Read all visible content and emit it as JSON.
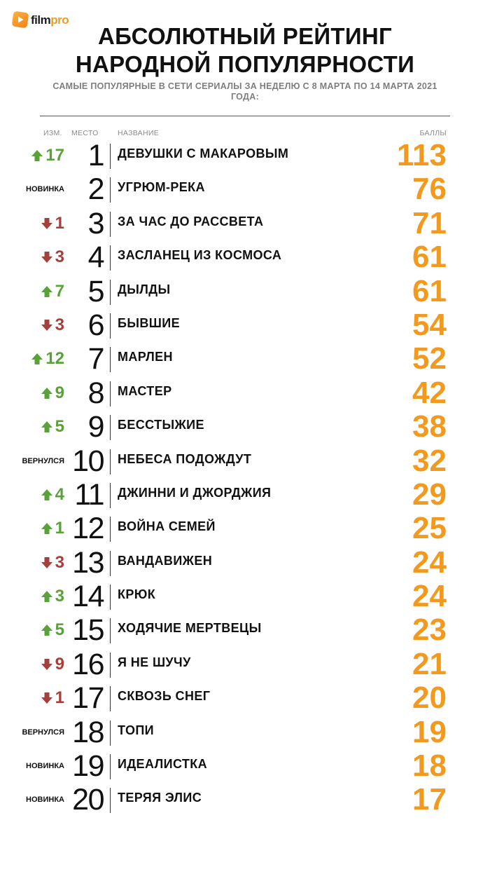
{
  "brand": {
    "name_a": "film",
    "name_b": "pro",
    "icon": "play-icon"
  },
  "title": {
    "line1": "АБСОЛЮТНЫЙ РЕЙТИНГ",
    "line2": "НАРОДНОЙ ПОПУЛЯРНОСТИ",
    "subtitle": "САМЫЕ ПОПУЛЯРНЫЕ В СЕТИ СЕРИАЛЫ ЗА НЕДЕЛЮ С 8 МАРТА ПО 14 МАРТА 2021 ГОДА:"
  },
  "columns": {
    "change": "ИЗМ.",
    "place": "МЕСТО",
    "name": "НАЗВАНИЕ",
    "points": "БАЛЛЫ"
  },
  "colors": {
    "up": "#5aa13a",
    "down": "#a3403b",
    "points": "#f29a1f"
  },
  "rows": [
    {
      "change_type": "up",
      "change": "17",
      "place": "1",
      "name": "ДЕВУШКИ С МАКАРОВЫМ",
      "points": "113"
    },
    {
      "change_type": "label",
      "change": "НОВИНКА",
      "place": "2",
      "name": "УГРЮМ-РЕКА",
      "points": "76"
    },
    {
      "change_type": "down",
      "change": "1",
      "place": "3",
      "name": "ЗА ЧАС ДО РАССВЕТА",
      "points": "71"
    },
    {
      "change_type": "down",
      "change": "3",
      "place": "4",
      "name": "ЗАСЛАНЕЦ ИЗ КОСМОСА",
      "points": "61"
    },
    {
      "change_type": "up",
      "change": "7",
      "place": "5",
      "name": "ДЫЛДЫ",
      "points": "61"
    },
    {
      "change_type": "down",
      "change": "3",
      "place": "6",
      "name": "БЫВШИЕ",
      "points": "54"
    },
    {
      "change_type": "up",
      "change": "12",
      "place": "7",
      "name": "МАРЛЕН",
      "points": "52"
    },
    {
      "change_type": "up",
      "change": "9",
      "place": "8",
      "name": "МАСТЕР",
      "points": "42"
    },
    {
      "change_type": "up",
      "change": "5",
      "place": "9",
      "name": "БЕССТЫЖИЕ",
      "points": "38"
    },
    {
      "change_type": "label",
      "change": "ВЕРНУЛСЯ",
      "place": "10",
      "name": "НЕБЕСА ПОДОЖДУТ",
      "points": "32"
    },
    {
      "change_type": "up",
      "change": "4",
      "place": "11",
      "name": "ДЖИННИ И ДЖОРДЖИЯ",
      "points": "29"
    },
    {
      "change_type": "up",
      "change": "1",
      "place": "12",
      "name": "ВОЙНА СЕМЕЙ",
      "points": "25"
    },
    {
      "change_type": "down",
      "change": "3",
      "place": "13",
      "name": "ВАНДАВИЖЕН",
      "points": "24"
    },
    {
      "change_type": "up",
      "change": "3",
      "place": "14",
      "name": "КРЮК",
      "points": "24"
    },
    {
      "change_type": "up",
      "change": "5",
      "place": "15",
      "name": "ХОДЯЧИЕ МЕРТВЕЦЫ",
      "points": "23"
    },
    {
      "change_type": "down",
      "change": "9",
      "place": "16",
      "name": "Я НЕ ШУЧУ",
      "points": "21"
    },
    {
      "change_type": "down",
      "change": "1",
      "place": "17",
      "name": "СКВОЗЬ СНЕГ",
      "points": "20"
    },
    {
      "change_type": "label",
      "change": "ВЕРНУЛСЯ",
      "place": "18",
      "name": "ТОПИ",
      "points": "19"
    },
    {
      "change_type": "label",
      "change": "НОВИНКА",
      "place": "19",
      "name": "ИДЕАЛИСТКА",
      "points": "18"
    },
    {
      "change_type": "label",
      "change": "НОВИНКА",
      "place": "20",
      "name": "ТЕРЯЯ ЭЛИС",
      "points": "17"
    }
  ]
}
